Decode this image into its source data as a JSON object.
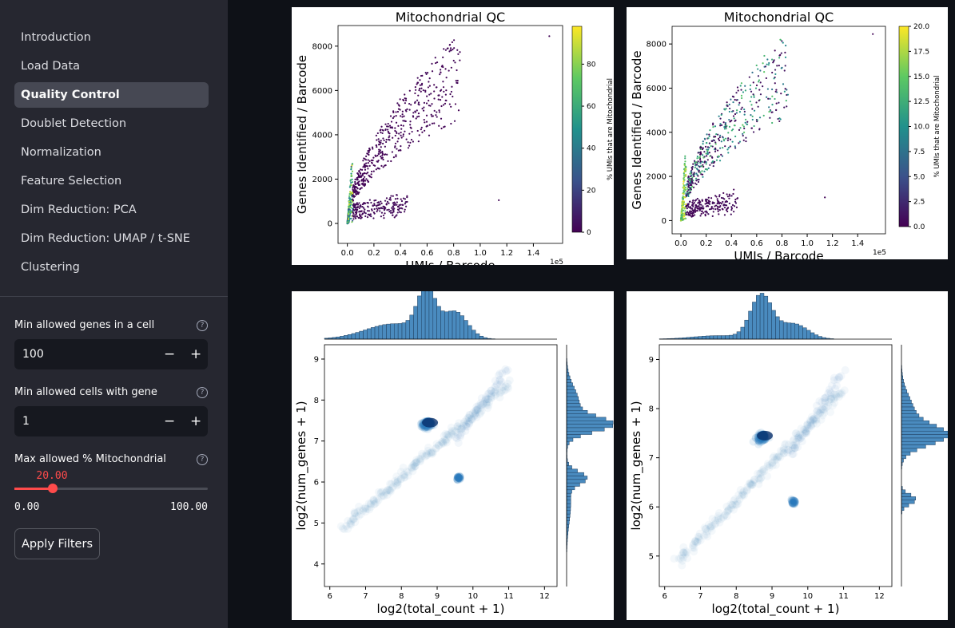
{
  "sidebar": {
    "nav": [
      "Introduction",
      "Load Data",
      "Quality Control",
      "Doublet Detection",
      "Normalization",
      "Feature Selection",
      "Dim Reduction: PCA",
      "Dim Reduction: UMAP / t-SNE",
      "Clustering"
    ],
    "inputs": [
      {
        "label": "Min allowed genes in a cell",
        "value": 100,
        "minus": "−",
        "plus": "+",
        "help": "?"
      },
      {
        "label": "Min allowed cells with gene",
        "value": 1,
        "minus": "−",
        "plus": "+",
        "help": "?"
      }
    ],
    "slider": {
      "label": "Max allowed % Mitochondrial",
      "help": "?",
      "value": {
        "value": 20,
        "label": "20.00"
      },
      "min": {
        "value": 0,
        "label": "0.00"
      },
      "max": {
        "value": 100,
        "label": "100.00"
      }
    },
    "button": "Apply Filters"
  },
  "plots": [
    {
      "kind": "scatter",
      "title": "Mitochondrial QC",
      "xlabel": "UMIs / Barcode",
      "ylabel": "Genes Identified / Barcode",
      "offset_text": "1e5",
      "xlim": [
        -0.07,
        1.62
      ],
      "ylim": [
        -900,
        8930
      ],
      "xticks": [
        {
          "value": 0,
          "label": "0.0"
        },
        0.2,
        0.4,
        0.6,
        0.8,
        {
          "value": 1,
          "label": "1.0"
        },
        1.2,
        1.4
      ],
      "yticks": [
        0,
        2000,
        4000,
        6000,
        8000
      ],
      "colorbar": {
        "label": "% UMIs that are Mitochondrial",
        "lim": [
          0,
          98
        ],
        "ticks": [
          0,
          20,
          40,
          60,
          80
        ]
      }
    },
    {
      "kind": "scatter",
      "title": "Mitochondrial QC",
      "xlabel": "UMIs / Barcode",
      "ylabel": "Genes Identified / Barcode",
      "offset_text": "1e5",
      "xlim": [
        -0.07,
        1.62
      ],
      "ylim": [
        -600,
        8800
      ],
      "xticks": [
        {
          "value": 0,
          "label": "0.0"
        },
        0.2,
        0.4,
        0.6,
        0.8,
        {
          "value": 1,
          "label": "1.0"
        },
        1.2,
        1.4
      ],
      "yticks": [
        0,
        2000,
        4000,
        6000,
        8000
      ],
      "colorbar": {
        "label": "% UMIs that are Mitochondrial",
        "lim": [
          0,
          20
        ],
        "ticks": [
          {
            "value": 0,
            "label": "0.0"
          },
          2.5,
          {
            "value": 5,
            "label": "5.0"
          },
          7.5,
          {
            "value": 10,
            "label": "10.0"
          },
          12.5,
          {
            "value": 15,
            "label": "15.0"
          },
          17.5,
          {
            "value": 20,
            "label": "20.0"
          }
        ]
      }
    },
    {
      "kind": "hexbin",
      "xlabel": "log2(total_count + 1)",
      "ylabel": "log2(num_genes + 1)",
      "xlim": [
        5.85,
        12.35
      ],
      "ylim": [
        3.45,
        9.35
      ],
      "xticks": [
        6,
        7,
        8,
        9,
        10,
        11,
        12
      ],
      "yticks": [
        4,
        5,
        6,
        7,
        8,
        9
      ]
    },
    {
      "kind": "hexbin",
      "xlabel": "log2(total_count + 1)",
      "ylabel": "log2(num_genes + 1)",
      "xlim": [
        5.85,
        12.35
      ],
      "ylim": [
        4.38,
        9.3
      ],
      "xticks": [
        6,
        7,
        8,
        9,
        10,
        11,
        12
      ],
      "yticks": [
        5,
        6,
        7,
        8,
        9
      ]
    }
  ]
}
